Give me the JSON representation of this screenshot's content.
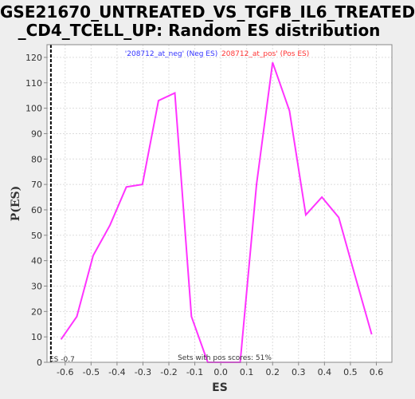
{
  "title_line1": "GSE21670_UNTREATED_VS_TGFB_IL6_TREATED",
  "title_line2": "_CD4_TCELL_UP: Random ES distribution",
  "chart_data": {
    "type": "line",
    "title": "GSE21670_UNTREATED_VS_TGFB_IL6_TREATED_CD4_TCELL_UP: Random ES distribution",
    "xlabel": "ES",
    "ylabel": "P(ES)",
    "xlim": [
      -0.67,
      0.66
    ],
    "ylim": [
      0,
      125
    ],
    "x_ticks": [
      -0.6,
      -0.5,
      -0.4,
      -0.3,
      -0.2,
      -0.1,
      0.0,
      0.1,
      0.2,
      0.3,
      0.4,
      0.5,
      0.6
    ],
    "x_tick_labels": [
      "-0.6",
      "-0.5",
      "-0.4",
      "-0.3",
      "-0.2",
      "-0.1",
      "0.0",
      "0.1",
      "0.2",
      "0.3",
      "0.4",
      "0.5",
      "0.6"
    ],
    "y_ticks": [
      0,
      10,
      20,
      30,
      40,
      50,
      60,
      70,
      80,
      90,
      100,
      110,
      120
    ],
    "grid": true,
    "series": [
      {
        "color": "#ff33ff",
        "x": [
          -0.616,
          -0.555,
          -0.492,
          -0.427,
          -0.364,
          -0.302,
          -0.24,
          -0.177,
          -0.113,
          -0.05,
          0.012,
          0.075,
          0.138,
          0.2,
          0.265,
          0.328,
          0.39,
          0.455,
          0.518,
          0.582
        ],
        "y": [
          9,
          18,
          42,
          54,
          69,
          70,
          103,
          106,
          18,
          0,
          0,
          0,
          70,
          118,
          99,
          58,
          65,
          57,
          34,
          11
        ]
      }
    ],
    "vline": {
      "x": -0.655,
      "label": "ES -0.7"
    },
    "annotations": {
      "neg_label": "'208712_at_neg' (Neg ES)",
      "pos_label": "208712_at_pos' (Pos ES)",
      "footer": "Sets with pos scores: 51%"
    },
    "colors": {
      "neg_label": "#3333ff",
      "pos_label": "#ff3333",
      "line": "#ff33ff",
      "grid": "#dddddd",
      "plot_bg": "#ffffff",
      "page_bg": "#eeeeee"
    }
  }
}
